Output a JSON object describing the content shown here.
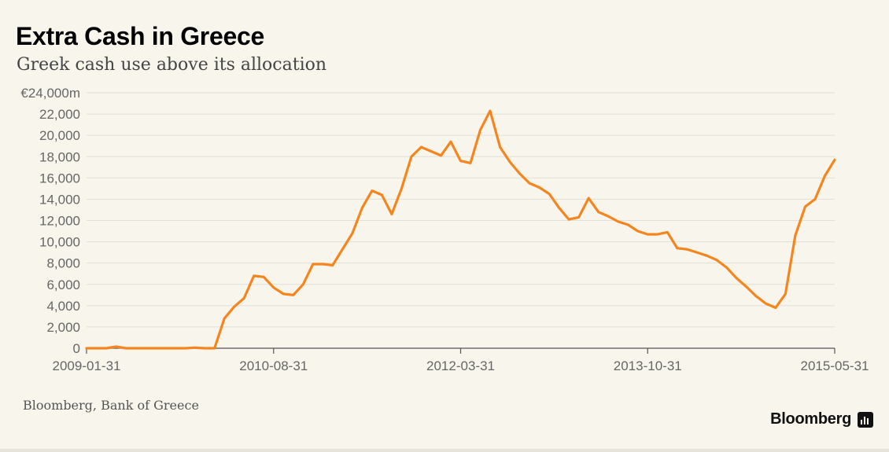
{
  "header": {
    "title": "Extra Cash in Greece",
    "subtitle": "Greek cash use above its allocation"
  },
  "footer": {
    "source": "Bloomberg, Bank of Greece",
    "brand": "Bloomberg"
  },
  "colors": {
    "background": "#f7f5ec",
    "line": "#f5861f",
    "grid": "#e2e0d6",
    "axis": "#555555"
  },
  "chart_data": {
    "type": "line",
    "title": "Extra Cash in Greece",
    "subtitle": "Greek cash use above its allocation",
    "xlabel": "",
    "ylabel": "",
    "y_unit_prefix": "€",
    "y_unit_suffix": "m",
    "ylim": [
      0,
      24000
    ],
    "yticks": [
      0,
      2000,
      4000,
      6000,
      8000,
      10000,
      12000,
      14000,
      16000,
      18000,
      20000,
      22000,
      24000
    ],
    "ytick_labels": [
      "0",
      "2,000",
      "4,000",
      "6,000",
      "8,000",
      "10,000",
      "12,000",
      "14,000",
      "16,000",
      "18,000",
      "20,000",
      "22,000",
      "€24,000m"
    ],
    "xlim_index": [
      0,
      76
    ],
    "xticks": [
      {
        "label": "2009-01-31",
        "index": 0
      },
      {
        "label": "2010-08-31",
        "index": 19
      },
      {
        "label": "2012-03-31",
        "index": 38
      },
      {
        "label": "2013-10-31",
        "index": 57
      },
      {
        "label": "2015-05-31",
        "index": 76
      }
    ],
    "grid": true,
    "legend": "none",
    "series": [
      {
        "name": "Greek cash use above its allocation",
        "start": "2009-01-31",
        "frequency": "monthly",
        "values": [
          0,
          0,
          0,
          150,
          0,
          0,
          0,
          0,
          0,
          0,
          0,
          50,
          0,
          0,
          2800,
          3900,
          4700,
          6800,
          6700,
          5700,
          5100,
          5000,
          6000,
          7900,
          7900,
          7800,
          9300,
          10800,
          13200,
          14800,
          14400,
          12600,
          15000,
          18000,
          18900,
          18500,
          18100,
          19400,
          17600,
          17400,
          20500,
          22300,
          18900,
          17500,
          16400,
          15500,
          15100,
          14500,
          13200,
          12100,
          12300,
          14100,
          12800,
          12400,
          11900,
          11600,
          11000,
          10700,
          10700,
          10900,
          9400,
          9300,
          9000,
          8700,
          8300,
          7600,
          6600,
          5800,
          4900,
          4200,
          3800,
          5100,
          10600,
          13300,
          14000,
          16200,
          17700
        ]
      }
    ]
  }
}
